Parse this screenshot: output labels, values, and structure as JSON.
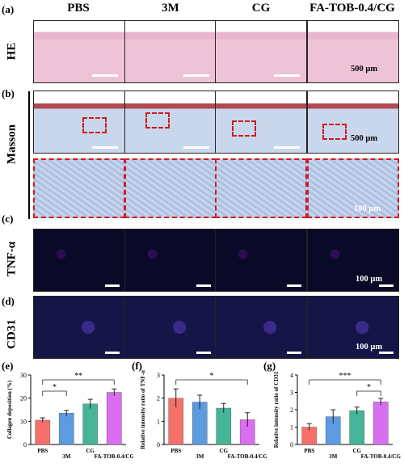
{
  "panels": {
    "a": "(a)",
    "b": "(b)",
    "c": "(c)",
    "d": "(d)",
    "e": "(e)",
    "f": "(f)",
    "g": "(g)"
  },
  "columns": [
    "PBS",
    "3M",
    "CG",
    "FA-TOB-0.4/CG"
  ],
  "rows": {
    "he": "HE",
    "masson": "Masson",
    "tnf": "TNF-α",
    "cd31": "CD31"
  },
  "scales": {
    "he": "500 μm",
    "masson": "500 μm",
    "zoom": "100 μm",
    "tnf": "100 μm",
    "cd31": "100 μm"
  },
  "colors": {
    "PBS": "#f4716b",
    "3M": "#5c9be0",
    "CG": "#46b497",
    "FA-TOB-0.4/CG": "#d96ef0"
  },
  "chart_data": [
    {
      "type": "bar",
      "panel": "e",
      "categories": [
        "PBS",
        "3M",
        "CG",
        "FA-TOB-0.4/CG"
      ],
      "values": [
        10.5,
        13.5,
        17.5,
        22.5
      ],
      "errors": [
        1.0,
        1.2,
        2.0,
        1.5
      ],
      "ylabel": "Collagen deposition (%)",
      "ylim": [
        0,
        30
      ],
      "yticks": [
        "0",
        "10",
        "20",
        "30"
      ],
      "significance": [
        {
          "label": "*",
          "from": "PBS",
          "to": "3M"
        },
        {
          "label": "**",
          "from": "PBS",
          "to": "FA-TOB-0.4/CG"
        }
      ]
    },
    {
      "type": "bar",
      "panel": "f",
      "categories": [
        "PBS",
        "3M",
        "CG",
        "FA-TOB-0.4/CG"
      ],
      "values": [
        2.0,
        1.83,
        1.57,
        1.07
      ],
      "errors": [
        0.4,
        0.3,
        0.2,
        0.3
      ],
      "ylabel": "Relative intensity ratio of TNF-α",
      "ylim": [
        0,
        3
      ],
      "yticks": [
        "0",
        "1",
        "2",
        "3"
      ],
      "significance": [
        {
          "label": "*",
          "from": "PBS",
          "to": "FA-TOB-0.4/CG"
        }
      ]
    },
    {
      "type": "bar",
      "panel": "g",
      "categories": [
        "PBS",
        "3M",
        "CG",
        "FA-TOB-0.4/CG"
      ],
      "values": [
        1.0,
        1.6,
        1.95,
        2.45
      ],
      "errors": [
        0.2,
        0.4,
        0.2,
        0.2
      ],
      "ylabel": "Relative intensity ratio of CD31",
      "ylim": [
        0,
        4
      ],
      "yticks": [
        "0",
        "1",
        "2",
        "3",
        "4"
      ],
      "significance": [
        {
          "label": "*",
          "from": "CG",
          "to": "FA-TOB-0.4/CG"
        },
        {
          "label": "***",
          "from": "PBS",
          "to": "FA-TOB-0.4/CG"
        }
      ]
    }
  ]
}
